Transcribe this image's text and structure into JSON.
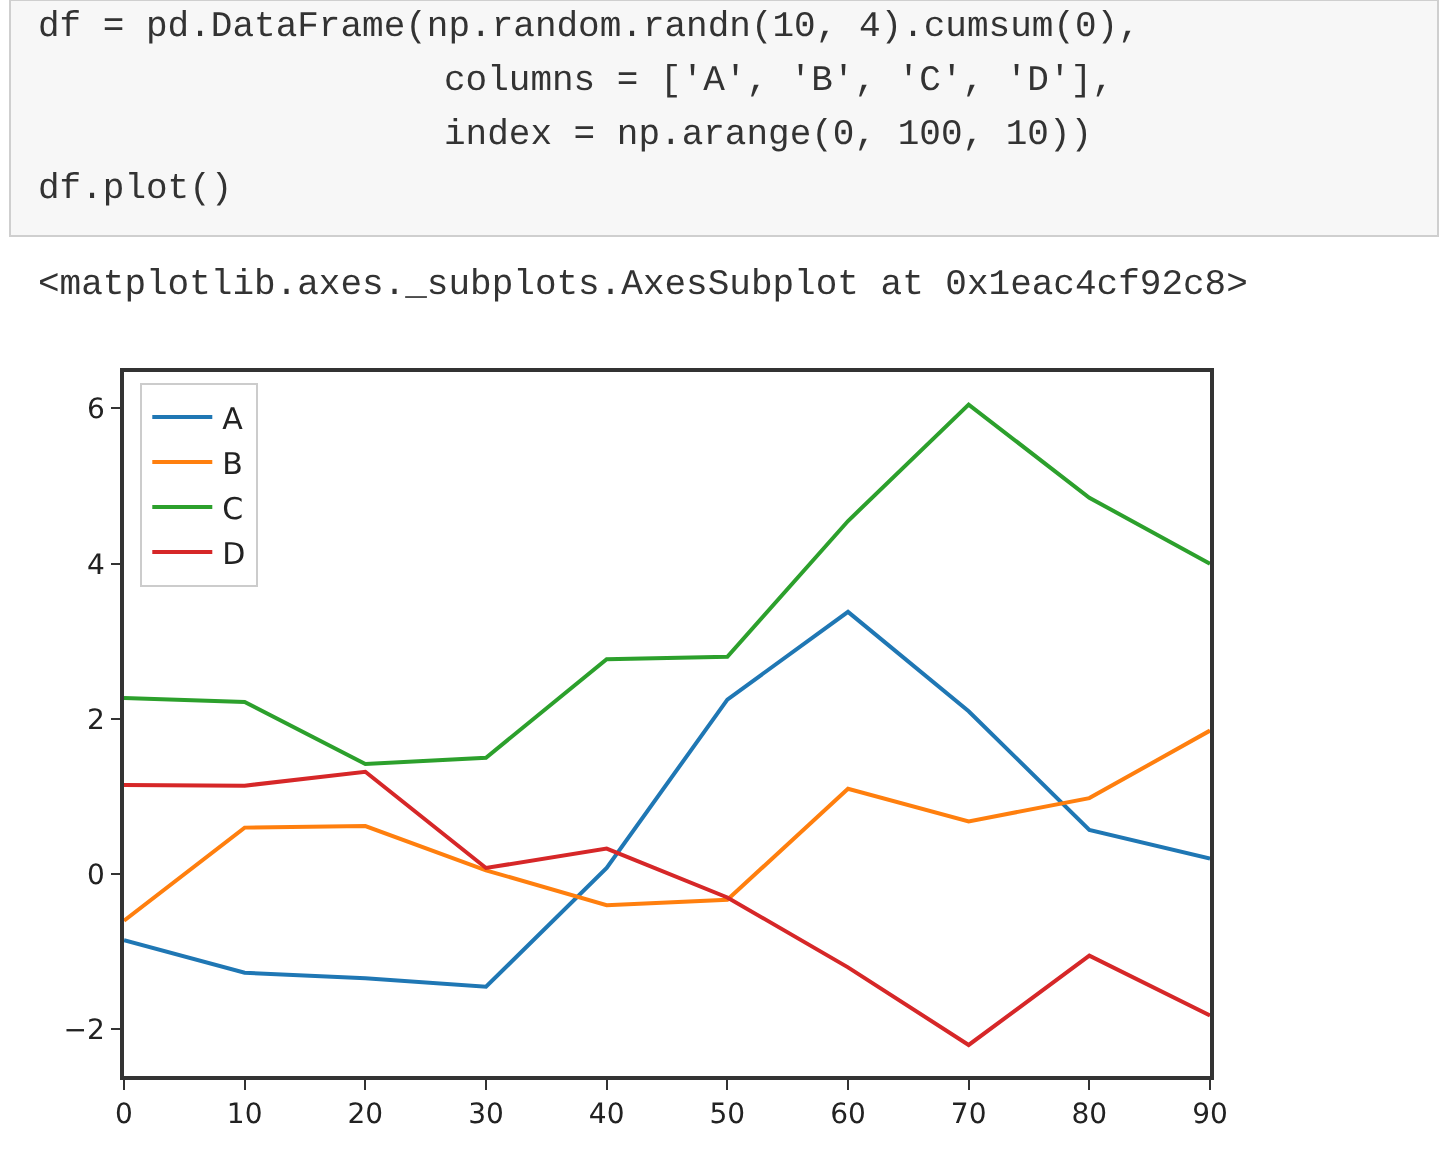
{
  "chart_data": {
    "type": "line",
    "x": [
      0,
      10,
      20,
      30,
      40,
      50,
      60,
      70,
      80,
      90
    ],
    "series": [
      {
        "name": "A",
        "color": "#1f77b4",
        "values": [
          -0.85,
          -1.27,
          -1.34,
          -1.45,
          0.08,
          2.25,
          3.38,
          2.1,
          0.57,
          0.2
        ]
      },
      {
        "name": "B",
        "color": "#ff7f0e",
        "values": [
          -0.6,
          0.6,
          0.62,
          0.05,
          -0.4,
          -0.33,
          1.1,
          0.68,
          0.98,
          1.85
        ]
      },
      {
        "name": "C",
        "color": "#2ca02c",
        "values": [
          2.27,
          2.22,
          1.42,
          1.5,
          2.77,
          2.8,
          4.55,
          6.05,
          4.85,
          4.0
        ]
      },
      {
        "name": "D",
        "color": "#d62728",
        "values": [
          1.15,
          1.14,
          1.32,
          0.08,
          0.33,
          -0.3,
          -1.2,
          -2.2,
          -1.05,
          -1.82
        ]
      }
    ],
    "xlim": [
      0,
      90
    ],
    "xticks": [
      0,
      10,
      20,
      30,
      40,
      50,
      60,
      70,
      80,
      90
    ],
    "ylim": [
      -2.6,
      6.47
    ],
    "yticks": [
      {
        "value": -2,
        "label": "−2"
      },
      0,
      2,
      4,
      6
    ],
    "legend": "top left",
    "marker": "none",
    "line_style": "solid",
    "annotations": [
      "df = pd.DataFrame(np.random.randn(10, 4).cumsum(0),",
      "columns = ['A', 'B', 'C', 'D'],",
      "index = np.arange(0, 100, 10))",
      "df.plot()",
      "<matplotlib.axes._subplots.AxesSubplot at 0x1eac4cf92c8>"
    ]
  }
}
